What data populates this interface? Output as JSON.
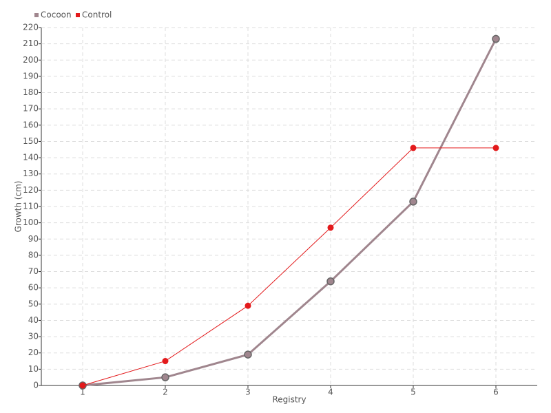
{
  "chart_data": {
    "type": "line",
    "x": [
      1,
      2,
      3,
      4,
      5,
      6
    ],
    "xlim": [
      0.5,
      6.5
    ],
    "xticks": [
      1,
      2,
      3,
      4,
      5,
      6
    ],
    "ylim": [
      0,
      220
    ],
    "yticks": [
      0,
      10,
      20,
      30,
      40,
      50,
      60,
      70,
      80,
      90,
      100,
      110,
      120,
      130,
      140,
      150,
      160,
      170,
      180,
      190,
      200,
      210,
      220
    ],
    "x_label": "Registry",
    "y_label": "Growth (cm)",
    "grid": true,
    "legend": "top-left",
    "series": [
      {
        "name": "Cocoon",
        "color": "#a0868e",
        "values": [
          0,
          5,
          19,
          64,
          113,
          213
        ]
      },
      {
        "name": "Control",
        "color": "#e31a1c",
        "values": [
          0,
          15,
          49,
          97,
          146,
          146
        ]
      }
    ]
  }
}
